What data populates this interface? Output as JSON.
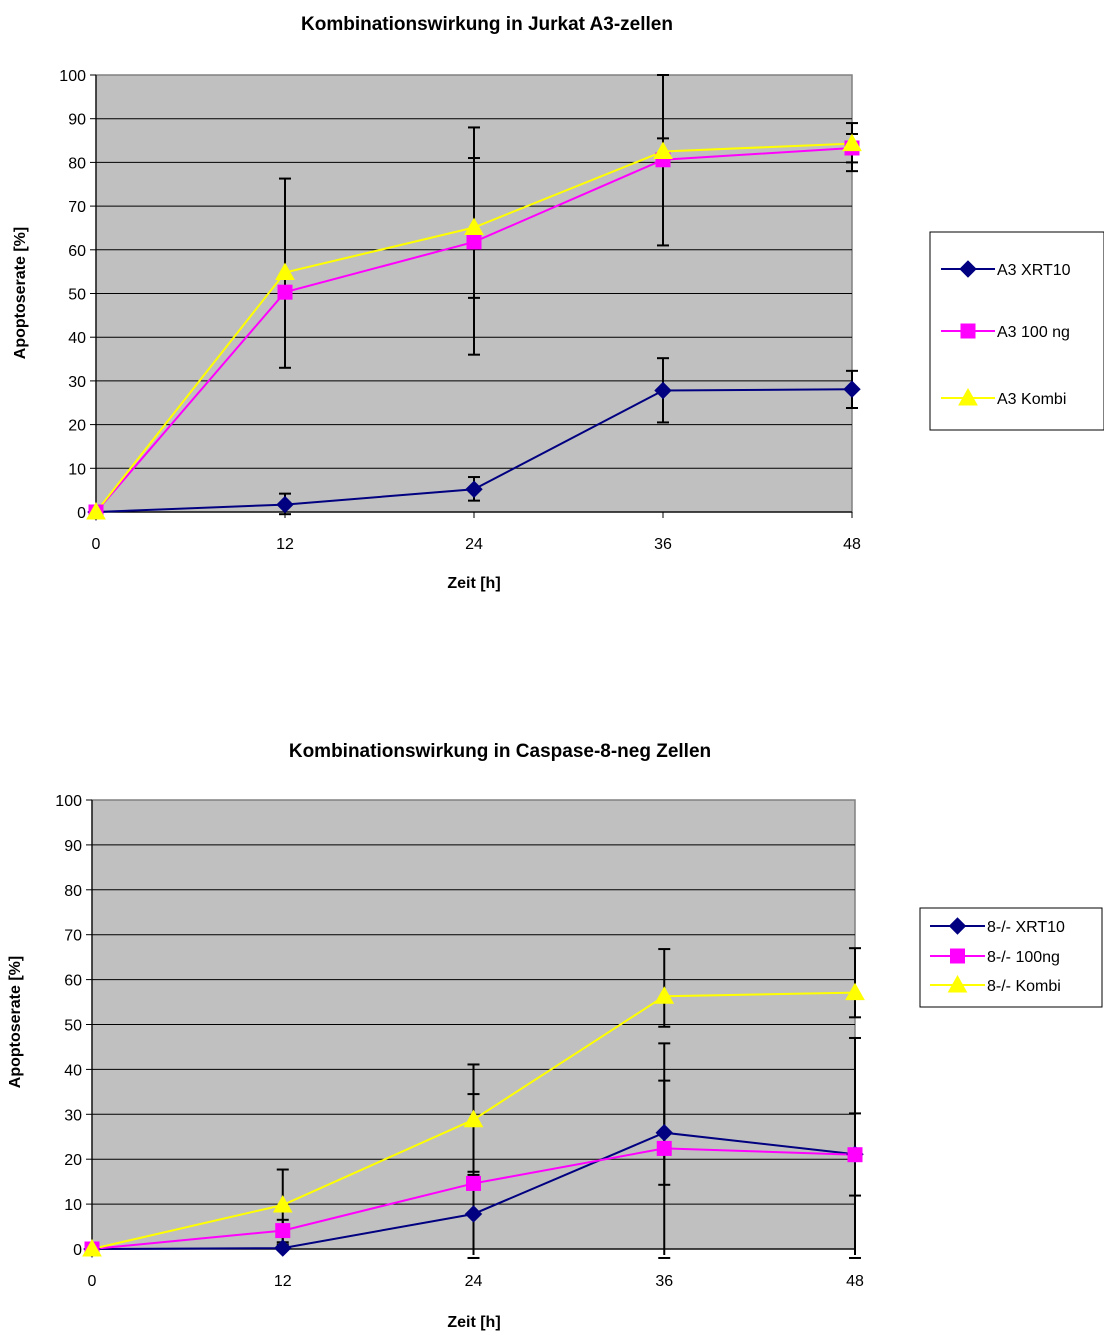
{
  "chart_data": [
    {
      "type": "line",
      "title": "Kombinationswirkung in Jurkat A3-zellen",
      "xlabel": "Zeit [h]",
      "ylabel": "Apoptoserate [%]",
      "x": [
        0,
        12,
        24,
        36,
        48
      ],
      "xticks": [
        "0",
        "12",
        "24",
        "36",
        "48"
      ],
      "yticks": [
        "0",
        "10",
        "20",
        "30",
        "40",
        "50",
        "60",
        "70",
        "80",
        "90",
        "100"
      ],
      "ylim": [
        0,
        100
      ],
      "grid": true,
      "legend_position": "right",
      "plot_background": "#c0c0c0",
      "series": [
        {
          "name": "A3 XRT10",
          "color": "#000080",
          "marker": "diamond",
          "values": [
            0,
            1.7,
            5.2,
            27.8,
            28.1
          ],
          "error_low": [
            0,
            -0.5,
            2.6,
            20.5,
            23.8
          ],
          "error_high": [
            0,
            4.2,
            8.0,
            35.2,
            32.3
          ]
        },
        {
          "name": "A3 100 ng",
          "color": "#ff00ff",
          "marker": "square",
          "values": [
            0,
            50.3,
            61.8,
            80.6,
            83.3
          ],
          "error_low": [
            0,
            33.0,
            49.0,
            61.0,
            78.0
          ],
          "error_high": [
            0,
            76.3,
            81.0,
            100,
            89.0
          ]
        },
        {
          "name": "A3 Kombi",
          "color": "#ffff00",
          "marker": "triangle",
          "values": [
            0,
            54.8,
            65.1,
            82.5,
            84.3
          ],
          "error_low": [
            0,
            54.8,
            36.0,
            79.5,
            80.0
          ],
          "error_high": [
            0,
            54.8,
            88.0,
            85.5,
            86.5
          ]
        }
      ]
    },
    {
      "type": "line",
      "title": "Kombinationswirkung in Caspase-8-neg Zellen",
      "xlabel": "Zeit [h]",
      "ylabel": "Apoptoserate [%]",
      "x": [
        0,
        12,
        24,
        36,
        48
      ],
      "xticks": [
        "0",
        "12",
        "24",
        "36",
        "48"
      ],
      "yticks": [
        "0",
        "10",
        "20",
        "30",
        "40",
        "50",
        "60",
        "70",
        "80",
        "90",
        "100"
      ],
      "ylim": [
        0,
        100
      ],
      "grid": true,
      "legend_position": "right",
      "plot_background": "#c0c0c0",
      "series": [
        {
          "name": "8-/- XRT10",
          "color": "#000080",
          "marker": "diamond",
          "values": [
            0,
            0.2,
            7.8,
            25.9,
            21.1
          ],
          "error_low": [
            0,
            0,
            -2,
            14.3,
            11.9
          ],
          "error_high": [
            0,
            1.0,
            17.2,
            37.5,
            30.2
          ]
        },
        {
          "name": "8-/- 100ng",
          "color": "#ff00ff",
          "marker": "square",
          "values": [
            0,
            4.1,
            14.6,
            22.4,
            21.0
          ],
          "error_low": [
            0,
            1.5,
            -2,
            -2,
            -2
          ],
          "error_high": [
            0,
            6.5,
            34.5,
            45.8,
            47.0
          ]
        },
        {
          "name": "8-/- Kombi",
          "color": "#ffff00",
          "marker": "triangle",
          "values": [
            0,
            9.8,
            28.8,
            56.3,
            57.1
          ],
          "error_low": [
            0,
            0,
            16.5,
            49.5,
            51.6
          ],
          "error_high": [
            0,
            17.7,
            41.1,
            66.8,
            67.0
          ]
        }
      ]
    }
  ]
}
